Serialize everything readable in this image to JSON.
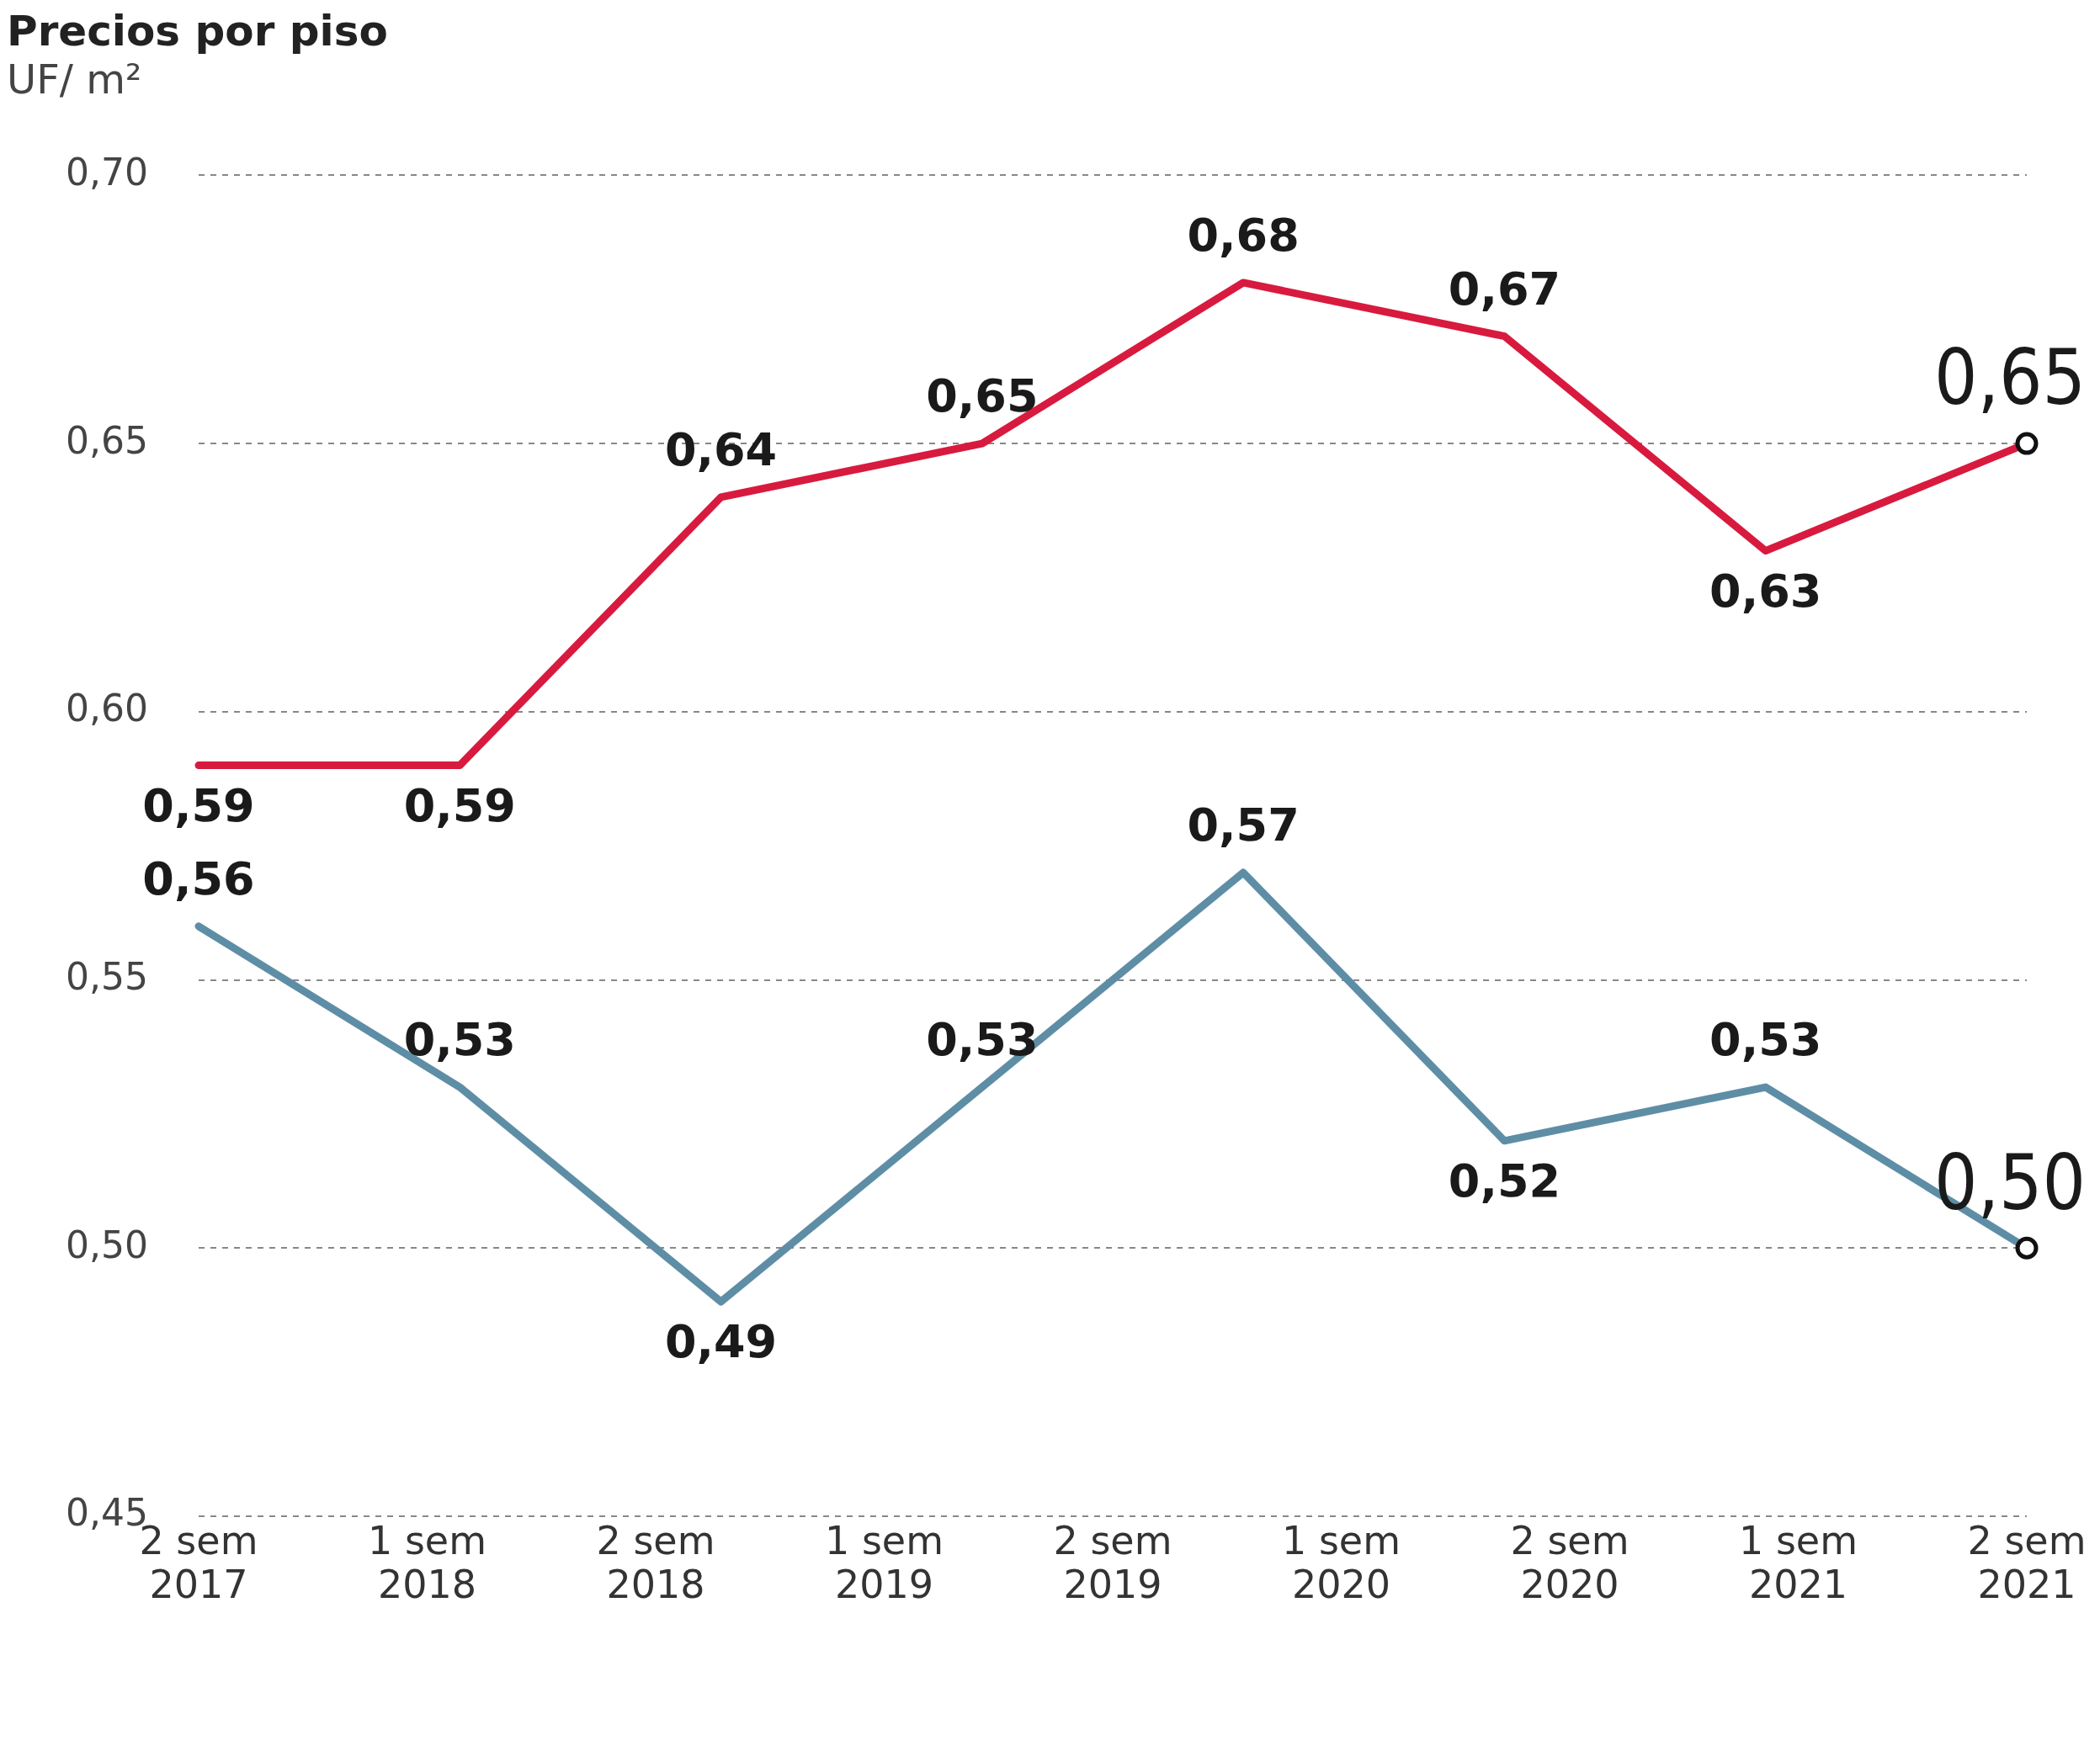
{
  "chart_data": {
    "type": "line",
    "title": "Precios por piso",
    "subtitle": "UF/ m²",
    "categories": [
      null,
      null,
      null,
      null,
      null,
      null,
      null,
      null
    ],
    "annotations": [
      "2 sem 2017",
      "1 sem 2018",
      "2 sem 2018",
      "1 sem 2019",
      "2 sem 2019",
      "1 sem 2020",
      "2 sem 2020",
      "1 sem 2021",
      "2 sem 2021"
    ],
    "ylim": [
      0.45,
      0.7
    ],
    "yticks": [
      {
        "value": 0.45,
        "label": "0,45"
      },
      {
        "value": 0.5,
        "label": "0,50"
      },
      {
        "value": 0.55,
        "label": "0,55"
      },
      {
        "value": 0.6,
        "label": "0,60"
      },
      {
        "value": 0.65,
        "label": "0,65"
      },
      {
        "value": 0.7,
        "label": "0,70"
      }
    ],
    "grid": "y",
    "legend": false,
    "line_style": "solid",
    "series": [
      {
        "color": "#d81a3f",
        "values": [
          0.59,
          0.59,
          0.64,
          0.65,
          0.68,
          0.67,
          0.63,
          0.65
        ],
        "value_labels": [
          "0,59",
          "0,59",
          "0,64",
          "0,65",
          "0,68",
          "0,67",
          "0,63",
          "0,65"
        ]
      },
      {
        "color": "#5e8ea6",
        "values": [
          0.56,
          0.53,
          0.49,
          0.53,
          0.57,
          0.52,
          0.53,
          0.5
        ],
        "value_labels": [
          "0,56",
          "0,53",
          "0,49",
          "0,53",
          "0,57",
          "0,52",
          "0,53",
          "0,50"
        ]
      }
    ]
  }
}
